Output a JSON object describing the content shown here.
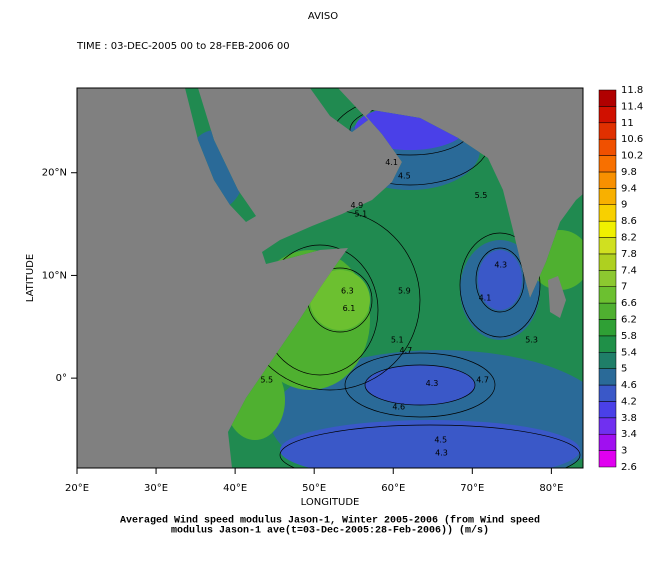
{
  "chart_data": {
    "type": "contour",
    "title": "AVISO",
    "subtitle": "TIME : 03-DEC-2005 00 to 28-FEB-2006 00",
    "x_label": "LONGITUDE",
    "y_label": "LATITUDE",
    "caption": [
      "Averaged Wind speed modulus Jason-1, Winter 2005-2006 (from Wind speed",
      "modulus Jason-1 ave(t=03-Dec-2005:28-Feb-2006)) (m/s)"
    ],
    "xlim": [
      20,
      84
    ],
    "ylim": [
      -8.75,
      28.25
    ],
    "xticks": [
      {
        "value": 20,
        "label": "20°E"
      },
      {
        "value": 30,
        "label": "30°E"
      },
      {
        "value": 40,
        "label": "40°E"
      },
      {
        "value": 50,
        "label": "50°E"
      },
      {
        "value": 60,
        "label": "60°E"
      },
      {
        "value": 70,
        "label": "70°E"
      },
      {
        "value": 80,
        "label": "80°E"
      }
    ],
    "yticks": [
      {
        "value": 0,
        "label": "0°"
      },
      {
        "value": 10,
        "label": "10°N"
      },
      {
        "value": 20,
        "label": "20°N"
      }
    ],
    "contour_labels": [
      {
        "x": 66.0,
        "y": -6.0,
        "label": "4.5"
      },
      {
        "x": 66.1,
        "y": -7.3,
        "label": "4.3"
      },
      {
        "x": 60.7,
        "y": -2.8,
        "label": "4.6"
      },
      {
        "x": 64.9,
        "y": -0.5,
        "label": "4.3"
      },
      {
        "x": 71.3,
        "y": -0.2,
        "label": "4.7"
      },
      {
        "x": 60.5,
        "y": 3.7,
        "label": "5.1"
      },
      {
        "x": 61.6,
        "y": 2.7,
        "label": "4.7"
      },
      {
        "x": 77.5,
        "y": 3.7,
        "label": "5.3"
      },
      {
        "x": 71.6,
        "y": 7.8,
        "label": "4.1"
      },
      {
        "x": 73.6,
        "y": 11.0,
        "label": "4.3"
      },
      {
        "x": 54.4,
        "y": 6.8,
        "label": "6.1"
      },
      {
        "x": 54.2,
        "y": 8.5,
        "label": "6.3"
      },
      {
        "x": 61.4,
        "y": 8.5,
        "label": "5.9"
      },
      {
        "x": 71.1,
        "y": 17.8,
        "label": "5.5"
      },
      {
        "x": 61.4,
        "y": 19.7,
        "label": "4.5"
      },
      {
        "x": 59.8,
        "y": 21.0,
        "label": "4.1"
      },
      {
        "x": 55.4,
        "y": 16.8,
        "label": "4.9"
      },
      {
        "x": 55.9,
        "y": 16.0,
        "label": "5.1"
      },
      {
        "x": 44.0,
        "y": -0.2,
        "label": "5.5"
      }
    ],
    "colorbar": {
      "ticks": [
        2.6,
        3,
        3.4,
        3.8,
        4.2,
        4.6,
        5,
        5.4,
        5.8,
        6.2,
        6.6,
        7,
        7.4,
        7.8,
        8.2,
        8.6,
        9,
        9.4,
        9.8,
        10.2,
        10.6,
        11,
        11.4,
        11.8
      ],
      "colors": [
        "#e000f0",
        "#a010f0",
        "#7030f0",
        "#4a40e8",
        "#3a58c8",
        "#2a6a98",
        "#1f7e68",
        "#1f9048",
        "#2fa035",
        "#4fb030",
        "#6cc030",
        "#8cc830",
        "#aed020",
        "#d0e020",
        "#f0f000",
        "#f8d000",
        "#f8b000",
        "#f89000",
        "#f87000",
        "#f05000",
        "#e03000",
        "#d01000",
        "#b00000"
      ]
    }
  }
}
